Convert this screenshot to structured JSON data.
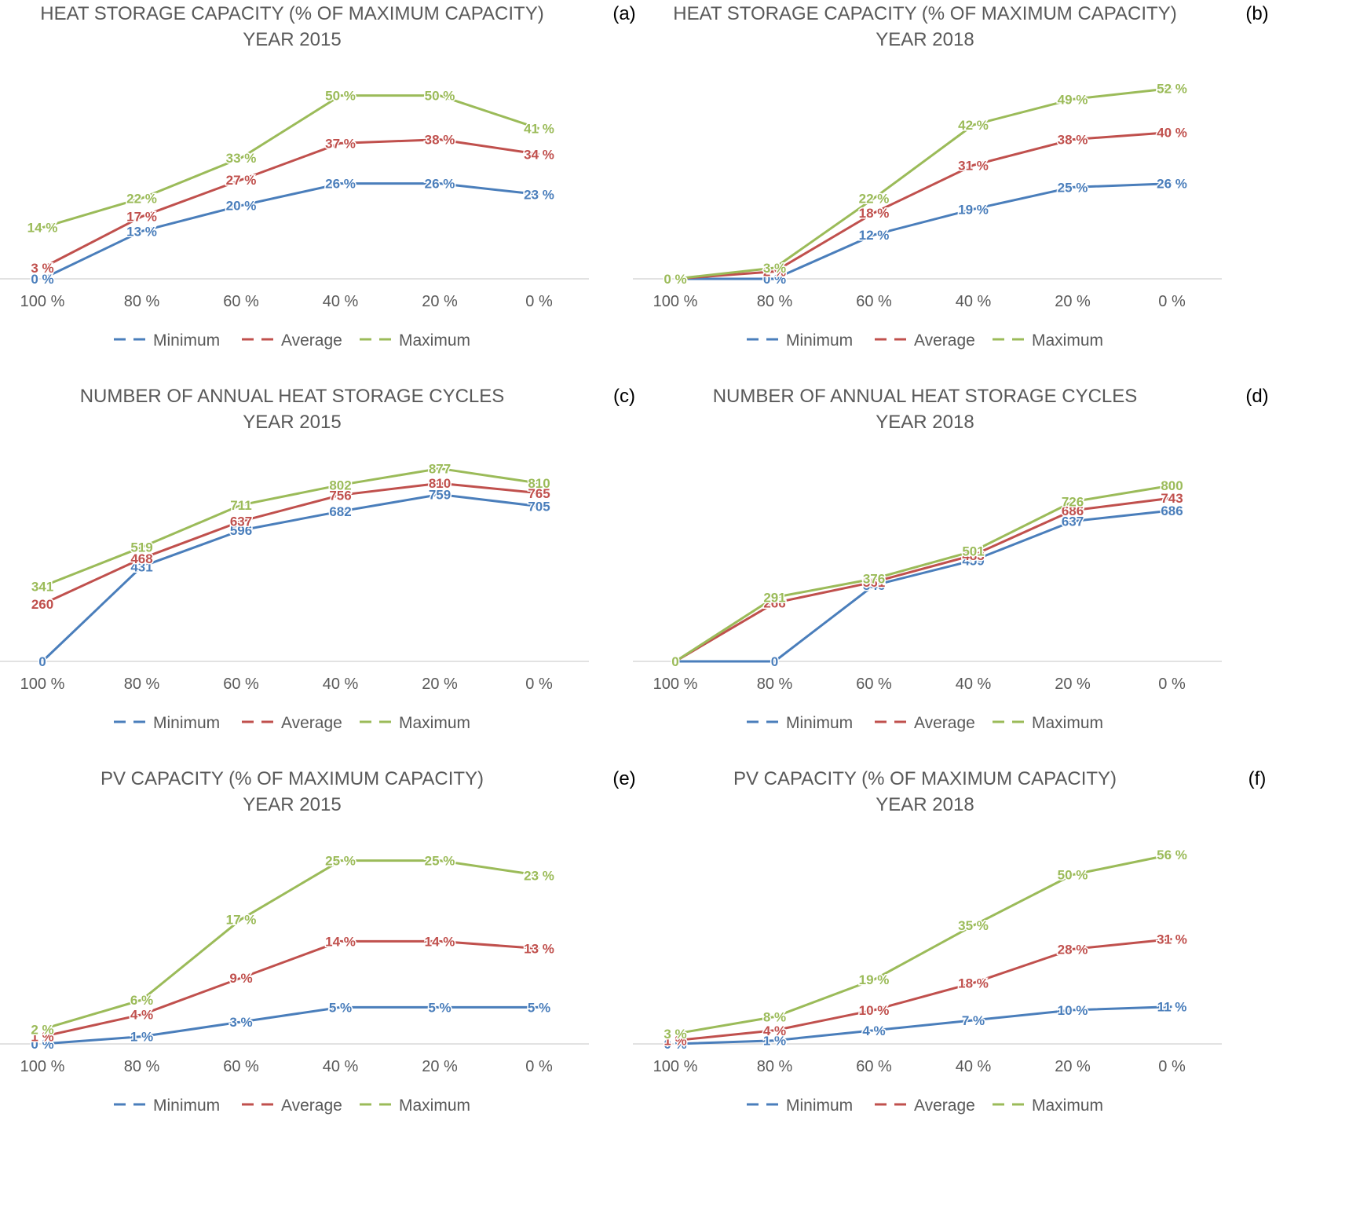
{
  "chart_data": [
    {
      "id": "a",
      "tag": "(a)",
      "type": "line",
      "title": [
        "HEAT STORAGE CAPACITY (% OF MAXIMUM CAPACITY)",
        "YEAR 2015"
      ],
      "categories": [
        "100 %",
        "80 %",
        "60 %",
        "40 %",
        "20 %",
        "0 %"
      ],
      "ylim": [
        0,
        60
      ],
      "label_suffix": " %",
      "legend_position": "bottom",
      "series": [
        {
          "name": "Minimum",
          "color": "#4a7ebb",
          "values": [
            0,
            13,
            20,
            26,
            26,
            23
          ]
        },
        {
          "name": "Average",
          "color": "#c0504d",
          "values": [
            3,
            17,
            27,
            37,
            38,
            34
          ]
        },
        {
          "name": "Maximum",
          "color": "#9bbb59",
          "values": [
            14,
            22,
            33,
            50,
            50,
            41
          ]
        }
      ]
    },
    {
      "id": "b",
      "tag": "(b)",
      "type": "line",
      "title": [
        "HEAT STORAGE CAPACITY (% OF MAXIMUM CAPACITY)",
        "YEAR 2018"
      ],
      "categories": [
        "100 %",
        "80 %",
        "60 %",
        "40 %",
        "20 %",
        "0 %"
      ],
      "ylim": [
        0,
        60
      ],
      "label_suffix": " %",
      "legend_position": "bottom",
      "series": [
        {
          "name": "Minimum",
          "color": "#4a7ebb",
          "values": [
            0,
            0,
            12,
            19,
            25,
            26
          ]
        },
        {
          "name": "Average",
          "color": "#c0504d",
          "values": [
            0,
            2,
            18,
            31,
            38,
            40
          ]
        },
        {
          "name": "Maximum",
          "color": "#9bbb59",
          "values": [
            0,
            3,
            22,
            42,
            49,
            52
          ]
        }
      ]
    },
    {
      "id": "c",
      "tag": "(c)",
      "type": "line",
      "title": [
        "NUMBER OF ANNUAL HEAT STORAGE CYCLES",
        "YEAR 2015"
      ],
      "categories": [
        "100 %",
        "80 %",
        "60 %",
        "40 %",
        "20 %",
        "0 %"
      ],
      "ylim": [
        0,
        1000
      ],
      "label_suffix": "",
      "legend_position": "bottom",
      "series": [
        {
          "name": "Minimum",
          "color": "#4a7ebb",
          "values": [
            0,
            431,
            596,
            682,
            759,
            705
          ]
        },
        {
          "name": "Average",
          "color": "#c0504d",
          "values": [
            260,
            468,
            637,
            756,
            810,
            765
          ]
        },
        {
          "name": "Maximum",
          "color": "#9bbb59",
          "values": [
            341,
            519,
            711,
            802,
            877,
            810
          ]
        }
      ]
    },
    {
      "id": "d",
      "tag": "(d)",
      "type": "line",
      "title": [
        "NUMBER OF ANNUAL HEAT STORAGE CYCLES",
        "YEAR 2018"
      ],
      "categories": [
        "100 %",
        "80 %",
        "60 %",
        "40 %",
        "20 %",
        "0 %"
      ],
      "ylim": [
        0,
        1000
      ],
      "label_suffix": "",
      "legend_position": "bottom",
      "series": [
        {
          "name": "Minimum",
          "color": "#4a7ebb",
          "values": [
            0,
            0,
            346,
            459,
            637,
            686
          ]
        },
        {
          "name": "Average",
          "color": "#c0504d",
          "values": [
            0,
            266,
            361,
            483,
            686,
            743
          ]
        },
        {
          "name": "Maximum",
          "color": "#9bbb59",
          "values": [
            0,
            291,
            376,
            501,
            726,
            800
          ]
        }
      ]
    },
    {
      "id": "e",
      "tag": "(e)",
      "type": "line",
      "title": [
        "PV CAPACITY (% OF MAXIMUM CAPACITY)",
        "YEAR 2015"
      ],
      "categories": [
        "100 %",
        "80 %",
        "60 %",
        "40 %",
        "20 %",
        "0 %"
      ],
      "ylim": [
        0,
        30
      ],
      "label_suffix": " %",
      "legend_position": "bottom",
      "series": [
        {
          "name": "Minimum",
          "color": "#4a7ebb",
          "values": [
            0,
            1,
            3,
            5,
            5,
            5
          ]
        },
        {
          "name": "Average",
          "color": "#c0504d",
          "values": [
            1,
            4,
            9,
            14,
            14,
            13
          ]
        },
        {
          "name": "Maximum",
          "color": "#9bbb59",
          "values": [
            2,
            6,
            17,
            25,
            25,
            23
          ]
        }
      ]
    },
    {
      "id": "f",
      "tag": "(f)",
      "type": "line",
      "title": [
        "PV CAPACITY (% OF MAXIMUM CAPACITY)",
        "YEAR 2018"
      ],
      "categories": [
        "100 %",
        "80 %",
        "60 %",
        "40 %",
        "20 %",
        "0 %"
      ],
      "ylim": [
        0,
        65
      ],
      "label_suffix": " %",
      "legend_position": "bottom",
      "series": [
        {
          "name": "Minimum",
          "color": "#4a7ebb",
          "values": [
            0,
            1,
            4,
            7,
            10,
            11
          ]
        },
        {
          "name": "Average",
          "color": "#c0504d",
          "values": [
            1,
            4,
            10,
            18,
            28,
            31
          ]
        },
        {
          "name": "Maximum",
          "color": "#9bbb59",
          "values": [
            3,
            8,
            19,
            35,
            50,
            56
          ]
        }
      ]
    }
  ]
}
